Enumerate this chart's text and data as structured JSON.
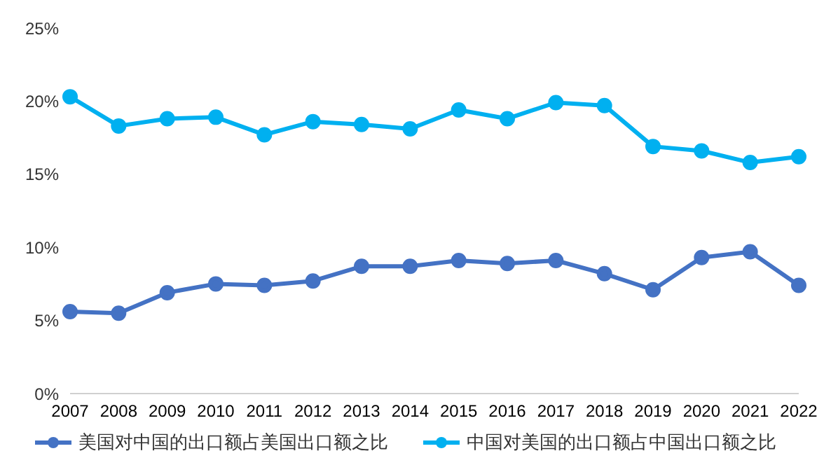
{
  "chart_data": {
    "type": "line",
    "categories": [
      "2007",
      "2008",
      "2009",
      "2010",
      "2011",
      "2012",
      "2013",
      "2014",
      "2015",
      "2016",
      "2017",
      "2018",
      "2019",
      "2020",
      "2021",
      "2022"
    ],
    "series": [
      {
        "name": "美国对中国的出口额占美国出口额之比",
        "color": "#4472c4",
        "values": [
          5.6,
          5.5,
          6.9,
          7.5,
          7.4,
          7.7,
          8.7,
          8.7,
          9.1,
          8.9,
          9.1,
          8.2,
          7.1,
          9.3,
          9.7,
          7.4
        ]
      },
      {
        "name": "中国对美国的出口额占中国出口额之比",
        "color": "#00b0f0",
        "values": [
          20.3,
          18.3,
          18.8,
          18.9,
          17.7,
          18.6,
          18.4,
          18.1,
          19.4,
          18.8,
          19.9,
          19.7,
          16.9,
          16.6,
          15.8,
          16.2
        ]
      }
    ],
    "ylim": [
      0,
      25
    ],
    "yticks": [
      {
        "value": 0,
        "label": "0%"
      },
      {
        "value": 5,
        "label": "5%"
      },
      {
        "value": 10,
        "label": "10%"
      },
      {
        "value": 15,
        "label": "15%"
      },
      {
        "value": 20,
        "label": "20%"
      },
      {
        "value": 25,
        "label": "25%"
      }
    ],
    "grid": false,
    "legend": "bottom",
    "marker": "circle",
    "line_style": "solid"
  }
}
